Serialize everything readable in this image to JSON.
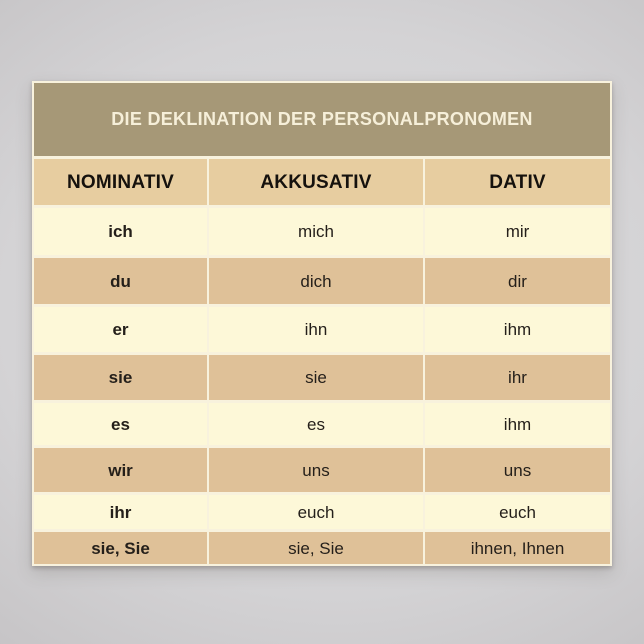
{
  "poster": {
    "title": "DIE DEKLINATION DER PERSONALPRONOMEN",
    "table": {
      "headers": [
        "NOMINATIV",
        "AKKUSATIV",
        "DATIV"
      ],
      "rows": [
        [
          "ich",
          "mich",
          "mir"
        ],
        [
          "du",
          "dich",
          "dir"
        ],
        [
          "er",
          "ihn",
          "ihm"
        ],
        [
          "sie",
          "sie",
          "ihr"
        ],
        [
          "es",
          "es",
          "ihm"
        ],
        [
          "wir",
          "uns",
          "uns"
        ],
        [
          "ihr",
          "euch",
          "euch"
        ],
        [
          "sie, Sie",
          "sie, Sie",
          "ihnen, Ihnen"
        ]
      ]
    }
  },
  "colors": {
    "title_bar": "#a69877",
    "title_text": "#f6efd9",
    "header_row": "#e7cda0",
    "row_cream": "#fdf8d8",
    "row_tan": "#dfc198",
    "paper": "#f8f2dd",
    "text": "#241f1a"
  }
}
